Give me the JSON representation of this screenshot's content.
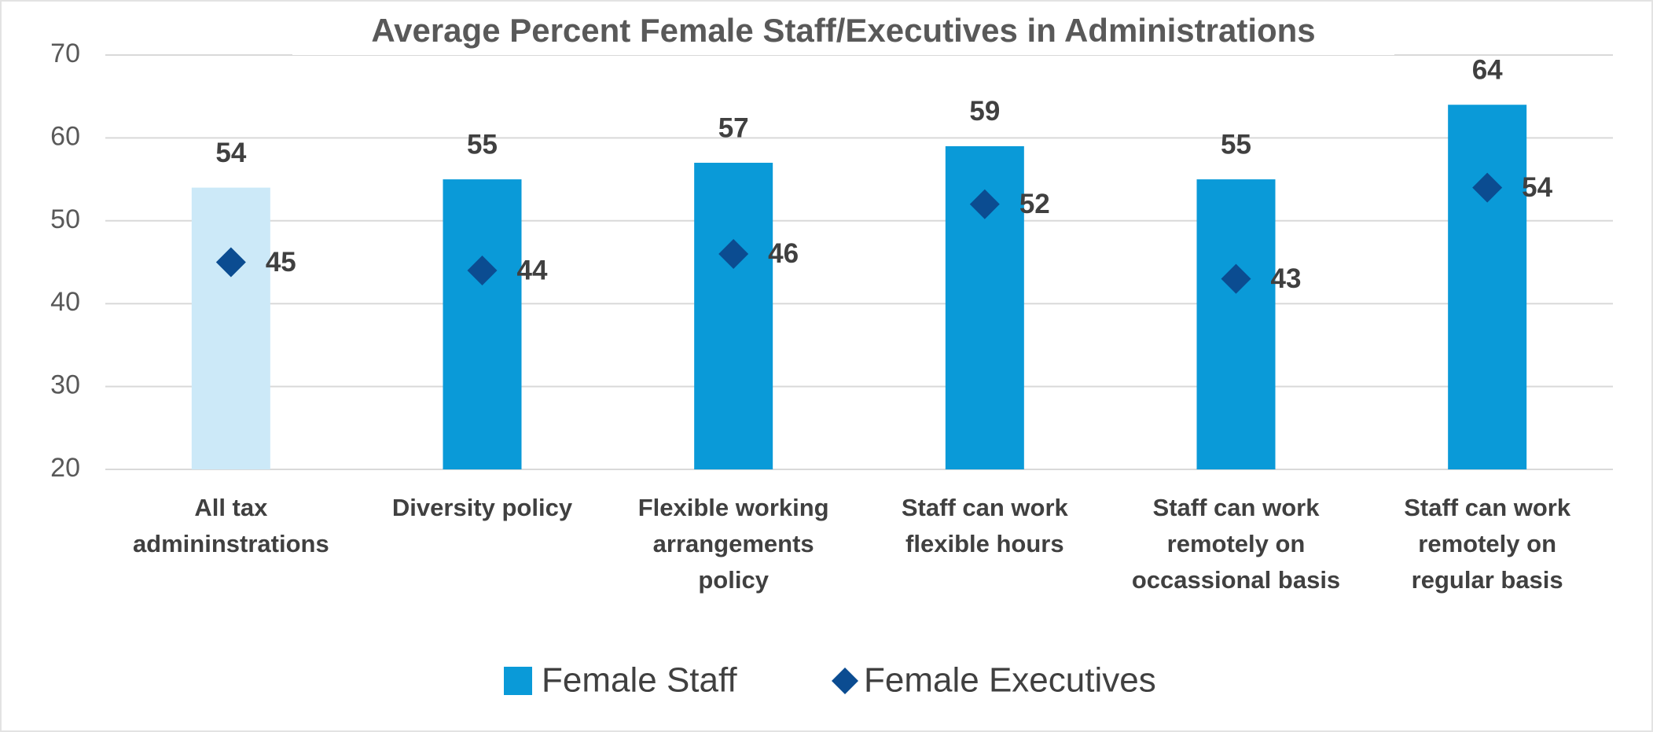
{
  "chart_data": {
    "type": "bar",
    "title": "Average Percent Female Staff/Executives in Administrations",
    "categories": [
      [
        "All tax",
        "admininstrations"
      ],
      [
        "Diversity policy"
      ],
      [
        "Flexible working",
        "arrangements",
        "policy"
      ],
      [
        "Staff can work",
        "flexible hours"
      ],
      [
        "Staff can work",
        "remotely on",
        "occassional basis"
      ],
      [
        "Staff can work",
        "remotely on",
        "regular basis"
      ]
    ],
    "series": [
      {
        "name": "Female Staff",
        "kind": "bar",
        "color": "#0a9ad8",
        "colors": [
          "#cce9f8",
          "#0a9ad8",
          "#0a9ad8",
          "#0a9ad8",
          "#0a9ad8",
          "#0a9ad8"
        ],
        "values": [
          54,
          55,
          57,
          59,
          55,
          64
        ]
      },
      {
        "name": "Female Executives",
        "kind": "diamond",
        "color": "#0b4c91",
        "values": [
          45,
          44,
          46,
          52,
          43,
          54
        ]
      }
    ],
    "ylim": [
      20,
      70
    ],
    "yticks": [
      20,
      30,
      40,
      50,
      60,
      70
    ],
    "grid": true,
    "legend": "bottom"
  }
}
